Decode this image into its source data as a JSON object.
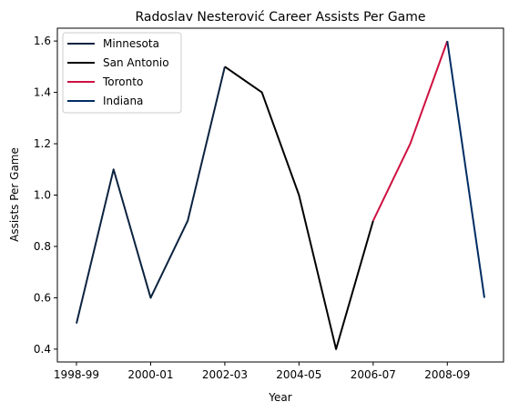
{
  "chart_data": {
    "type": "line",
    "title": "Radoslav Nesterović Career Assists Per Game",
    "xlabel": "Year",
    "ylabel": "Assists Per Game",
    "x": [
      "1998-99",
      "1999-00",
      "2000-01",
      "2001-02",
      "2002-03",
      "2003-04",
      "2004-05",
      "2005-06",
      "2006-07",
      "2007-08",
      "2008-09",
      "2009-10"
    ],
    "x_ticks": [
      "1998-99",
      "2000-01",
      "2002-03",
      "2004-05",
      "2006-07",
      "2008-09"
    ],
    "y_ticks": [
      "0.4",
      "0.6",
      "0.8",
      "1.0",
      "1.2",
      "1.4",
      "1.6"
    ],
    "ylim": [
      0.35,
      1.65
    ],
    "grid": false,
    "legend_position": "top-left",
    "series": [
      {
        "name": "Minnesota",
        "color": "#0c2340",
        "x": [
          "1998-99",
          "1999-00",
          "2000-01",
          "2001-02",
          "2002-03"
        ],
        "values": [
          0.5,
          1.1,
          0.6,
          0.9,
          1.5
        ]
      },
      {
        "name": "San Antonio",
        "color": "#000000",
        "x": [
          "2002-03",
          "2003-04",
          "2004-05",
          "2005-06",
          "2006-07"
        ],
        "values": [
          1.5,
          1.4,
          1.0,
          0.4,
          0.9
        ]
      },
      {
        "name": "Toronto",
        "color": "#ce1141",
        "x": [
          "2006-07",
          "2007-08",
          "2008-09"
        ],
        "values": [
          0.9,
          1.2,
          1.6
        ]
      },
      {
        "name": "Indiana",
        "color": "#002d62",
        "x": [
          "2008-09",
          "2009-10"
        ],
        "values": [
          1.6,
          0.6
        ]
      }
    ]
  }
}
